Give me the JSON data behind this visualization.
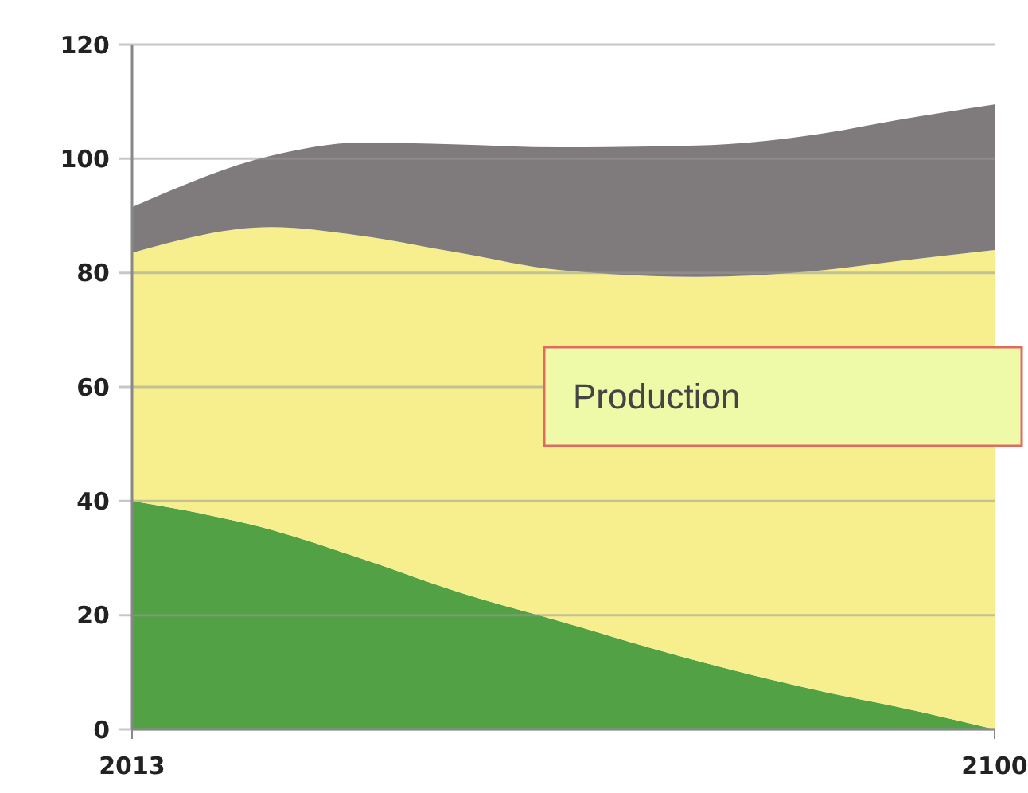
{
  "chart_data": {
    "type": "area",
    "stacked": true,
    "x": [
      2013,
      2027,
      2036,
      2046,
      2056,
      2070,
      2083,
      2090,
      2100
    ],
    "series": [
      {
        "color": "#52a145",
        "values": [
          40,
          35,
          30,
          24,
          19,
          12,
          6.5,
          4,
          0
        ]
      },
      {
        "color": "#f7ef8e",
        "values": [
          43.5,
          53,
          56.5,
          59.5,
          61.5,
          67.3,
          74,
          78,
          84
        ]
      },
      {
        "color": "#7f7a7c",
        "values": [
          8,
          12.5,
          16.3,
          19,
          21.5,
          23,
          24,
          24.7,
          25.5
        ]
      }
    ],
    "xlim": [
      2013,
      2100
    ],
    "xticks": [
      2013,
      2100
    ],
    "ylim": [
      0,
      120
    ],
    "yticks": [
      0,
      20,
      40,
      60,
      80,
      100,
      120
    ],
    "grid": "y",
    "annotations": [
      "Production"
    ]
  }
}
